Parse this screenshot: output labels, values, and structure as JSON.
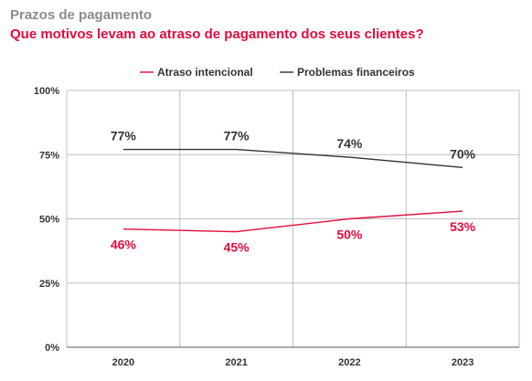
{
  "header": {
    "title": "Prazos de pagamento",
    "subtitle": "Que motivos levam ao atraso de pagamento dos seus clientes?"
  },
  "colors": {
    "accent": "#e30b3c",
    "dark": "#333333",
    "muted": "#8c8c8c",
    "grid": "#bfbfbf"
  },
  "chart_data": {
    "type": "line",
    "categories": [
      "2020",
      "2021",
      "2022",
      "2023"
    ],
    "ylim": [
      0,
      100
    ],
    "yticks": [
      0,
      25,
      50,
      75,
      100
    ],
    "ytick_labels": [
      "0%",
      "25%",
      "50%",
      "75%",
      "100%"
    ],
    "grid": true,
    "legend_position": "top-center",
    "series": [
      {
        "name": "Atraso intencional",
        "color": "#e30b3c",
        "values": [
          46,
          45,
          50,
          53
        ],
        "labels": [
          "46%",
          "45%",
          "50%",
          "53%"
        ],
        "label_position": "below"
      },
      {
        "name": "Problemas financeiros",
        "color": "#333333",
        "values": [
          77,
          77,
          74,
          70
        ],
        "labels": [
          "77%",
          "77%",
          "74%",
          "70%"
        ],
        "label_position": "above"
      }
    ]
  }
}
